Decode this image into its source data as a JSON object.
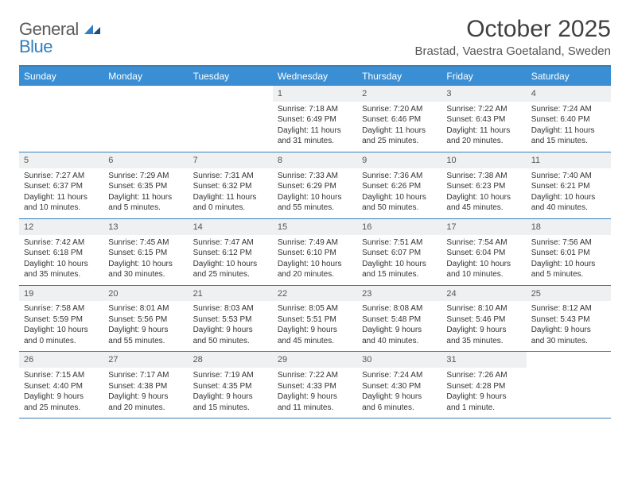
{
  "logo": {
    "part1": "General",
    "part2": "Blue"
  },
  "title": "October 2025",
  "location": "Brastad, Vaestra Goetaland, Sweden",
  "colors": {
    "header_bg": "#3a8fd4",
    "border": "#3a7fb8",
    "daynum_bg": "#eef0f1",
    "text": "#333333",
    "title": "#404040",
    "logo_gray": "#5a5a5a",
    "logo_blue": "#2f7fc2"
  },
  "day_names": [
    "Sunday",
    "Monday",
    "Tuesday",
    "Wednesday",
    "Thursday",
    "Friday",
    "Saturday"
  ],
  "weeks": [
    [
      {
        "num": "",
        "sunrise": "",
        "sunset": "",
        "daylight": ""
      },
      {
        "num": "",
        "sunrise": "",
        "sunset": "",
        "daylight": ""
      },
      {
        "num": "",
        "sunrise": "",
        "sunset": "",
        "daylight": ""
      },
      {
        "num": "1",
        "sunrise": "Sunrise: 7:18 AM",
        "sunset": "Sunset: 6:49 PM",
        "daylight": "Daylight: 11 hours and 31 minutes."
      },
      {
        "num": "2",
        "sunrise": "Sunrise: 7:20 AM",
        "sunset": "Sunset: 6:46 PM",
        "daylight": "Daylight: 11 hours and 25 minutes."
      },
      {
        "num": "3",
        "sunrise": "Sunrise: 7:22 AM",
        "sunset": "Sunset: 6:43 PM",
        "daylight": "Daylight: 11 hours and 20 minutes."
      },
      {
        "num": "4",
        "sunrise": "Sunrise: 7:24 AM",
        "sunset": "Sunset: 6:40 PM",
        "daylight": "Daylight: 11 hours and 15 minutes."
      }
    ],
    [
      {
        "num": "5",
        "sunrise": "Sunrise: 7:27 AM",
        "sunset": "Sunset: 6:37 PM",
        "daylight": "Daylight: 11 hours and 10 minutes."
      },
      {
        "num": "6",
        "sunrise": "Sunrise: 7:29 AM",
        "sunset": "Sunset: 6:35 PM",
        "daylight": "Daylight: 11 hours and 5 minutes."
      },
      {
        "num": "7",
        "sunrise": "Sunrise: 7:31 AM",
        "sunset": "Sunset: 6:32 PM",
        "daylight": "Daylight: 11 hours and 0 minutes."
      },
      {
        "num": "8",
        "sunrise": "Sunrise: 7:33 AM",
        "sunset": "Sunset: 6:29 PM",
        "daylight": "Daylight: 10 hours and 55 minutes."
      },
      {
        "num": "9",
        "sunrise": "Sunrise: 7:36 AM",
        "sunset": "Sunset: 6:26 PM",
        "daylight": "Daylight: 10 hours and 50 minutes."
      },
      {
        "num": "10",
        "sunrise": "Sunrise: 7:38 AM",
        "sunset": "Sunset: 6:23 PM",
        "daylight": "Daylight: 10 hours and 45 minutes."
      },
      {
        "num": "11",
        "sunrise": "Sunrise: 7:40 AM",
        "sunset": "Sunset: 6:21 PM",
        "daylight": "Daylight: 10 hours and 40 minutes."
      }
    ],
    [
      {
        "num": "12",
        "sunrise": "Sunrise: 7:42 AM",
        "sunset": "Sunset: 6:18 PM",
        "daylight": "Daylight: 10 hours and 35 minutes."
      },
      {
        "num": "13",
        "sunrise": "Sunrise: 7:45 AM",
        "sunset": "Sunset: 6:15 PM",
        "daylight": "Daylight: 10 hours and 30 minutes."
      },
      {
        "num": "14",
        "sunrise": "Sunrise: 7:47 AM",
        "sunset": "Sunset: 6:12 PM",
        "daylight": "Daylight: 10 hours and 25 minutes."
      },
      {
        "num": "15",
        "sunrise": "Sunrise: 7:49 AM",
        "sunset": "Sunset: 6:10 PM",
        "daylight": "Daylight: 10 hours and 20 minutes."
      },
      {
        "num": "16",
        "sunrise": "Sunrise: 7:51 AM",
        "sunset": "Sunset: 6:07 PM",
        "daylight": "Daylight: 10 hours and 15 minutes."
      },
      {
        "num": "17",
        "sunrise": "Sunrise: 7:54 AM",
        "sunset": "Sunset: 6:04 PM",
        "daylight": "Daylight: 10 hours and 10 minutes."
      },
      {
        "num": "18",
        "sunrise": "Sunrise: 7:56 AM",
        "sunset": "Sunset: 6:01 PM",
        "daylight": "Daylight: 10 hours and 5 minutes."
      }
    ],
    [
      {
        "num": "19",
        "sunrise": "Sunrise: 7:58 AM",
        "sunset": "Sunset: 5:59 PM",
        "daylight": "Daylight: 10 hours and 0 minutes."
      },
      {
        "num": "20",
        "sunrise": "Sunrise: 8:01 AM",
        "sunset": "Sunset: 5:56 PM",
        "daylight": "Daylight: 9 hours and 55 minutes."
      },
      {
        "num": "21",
        "sunrise": "Sunrise: 8:03 AM",
        "sunset": "Sunset: 5:53 PM",
        "daylight": "Daylight: 9 hours and 50 minutes."
      },
      {
        "num": "22",
        "sunrise": "Sunrise: 8:05 AM",
        "sunset": "Sunset: 5:51 PM",
        "daylight": "Daylight: 9 hours and 45 minutes."
      },
      {
        "num": "23",
        "sunrise": "Sunrise: 8:08 AM",
        "sunset": "Sunset: 5:48 PM",
        "daylight": "Daylight: 9 hours and 40 minutes."
      },
      {
        "num": "24",
        "sunrise": "Sunrise: 8:10 AM",
        "sunset": "Sunset: 5:46 PM",
        "daylight": "Daylight: 9 hours and 35 minutes."
      },
      {
        "num": "25",
        "sunrise": "Sunrise: 8:12 AM",
        "sunset": "Sunset: 5:43 PM",
        "daylight": "Daylight: 9 hours and 30 minutes."
      }
    ],
    [
      {
        "num": "26",
        "sunrise": "Sunrise: 7:15 AM",
        "sunset": "Sunset: 4:40 PM",
        "daylight": "Daylight: 9 hours and 25 minutes."
      },
      {
        "num": "27",
        "sunrise": "Sunrise: 7:17 AM",
        "sunset": "Sunset: 4:38 PM",
        "daylight": "Daylight: 9 hours and 20 minutes."
      },
      {
        "num": "28",
        "sunrise": "Sunrise: 7:19 AM",
        "sunset": "Sunset: 4:35 PM",
        "daylight": "Daylight: 9 hours and 15 minutes."
      },
      {
        "num": "29",
        "sunrise": "Sunrise: 7:22 AM",
        "sunset": "Sunset: 4:33 PM",
        "daylight": "Daylight: 9 hours and 11 minutes."
      },
      {
        "num": "30",
        "sunrise": "Sunrise: 7:24 AM",
        "sunset": "Sunset: 4:30 PM",
        "daylight": "Daylight: 9 hours and 6 minutes."
      },
      {
        "num": "31",
        "sunrise": "Sunrise: 7:26 AM",
        "sunset": "Sunset: 4:28 PM",
        "daylight": "Daylight: 9 hours and 1 minute."
      },
      {
        "num": "",
        "sunrise": "",
        "sunset": "",
        "daylight": ""
      }
    ]
  ]
}
